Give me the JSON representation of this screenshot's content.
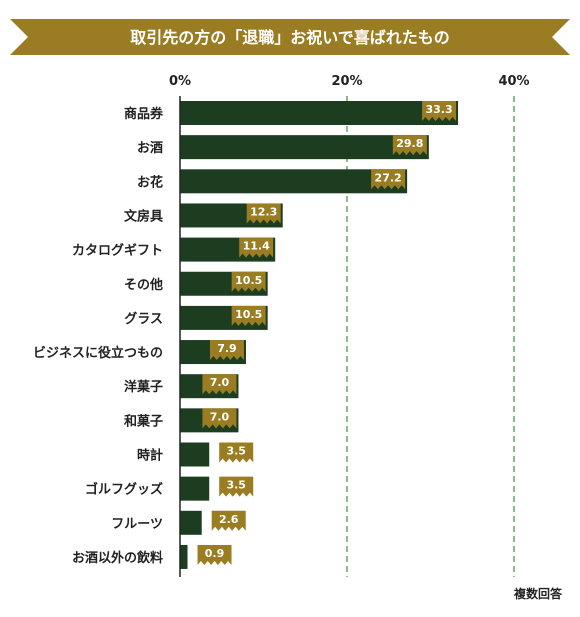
{
  "chart_data": {
    "type": "bar",
    "orientation": "horizontal",
    "title": "取引先の方の「退職」お祝いで喜ばれたもの",
    "note": "複数回答",
    "x_ticks": [
      "0%",
      "20%",
      "40%"
    ],
    "xlim": [
      0,
      45
    ],
    "grid": "vertical-dashed",
    "categories": [
      "商品券",
      "お酒",
      "お花",
      "文房具",
      "カタログギフト",
      "その他",
      "グラス",
      "ビジネスに役立つもの",
      "洋菓子",
      "和菓子",
      "時計",
      "ゴルフグッズ",
      "フルーツ",
      "お酒以外の飲料"
    ],
    "values": [
      33.3,
      29.8,
      27.2,
      12.3,
      11.4,
      10.5,
      10.5,
      7.9,
      7.0,
      7.0,
      3.5,
      3.5,
      2.6,
      0.9
    ],
    "value_labels": [
      "33.3",
      "29.8",
      "27.2",
      "12.3",
      "11.4",
      "10.5",
      "10.5",
      "7.9",
      "7.0",
      "7.0",
      "3.5",
      "3.5",
      "2.6",
      "0.9"
    ]
  },
  "colors": {
    "banner": "#9a7d22",
    "bar": "#1c3d1f",
    "badge": "#9a7d22",
    "grid": "#4c9a4c",
    "axis": "#222222"
  }
}
